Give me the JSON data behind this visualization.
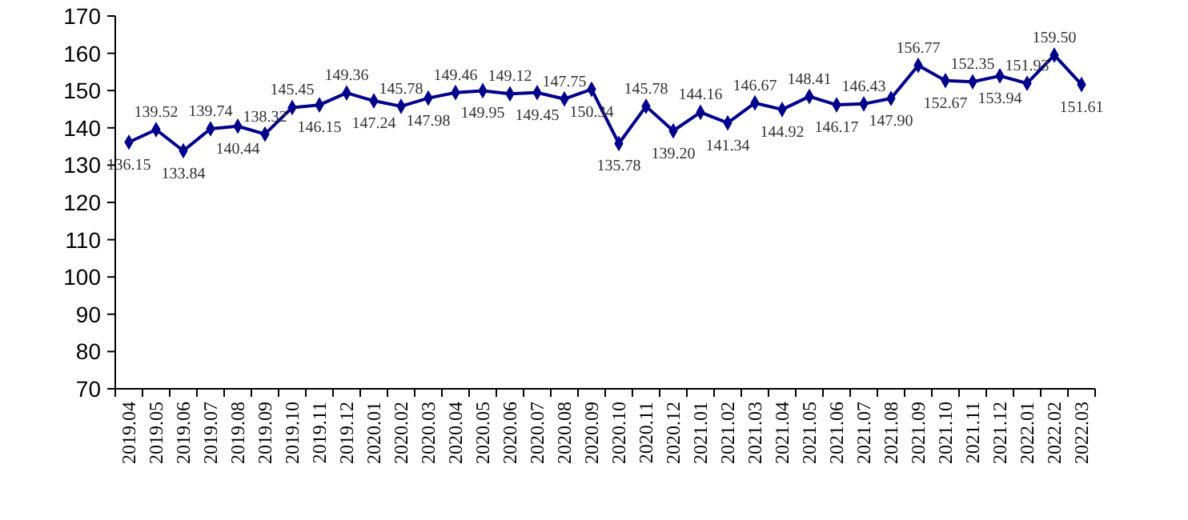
{
  "chart_data": {
    "type": "line",
    "categories": [
      "2019.04",
      "2019.05",
      "2019.06",
      "2019.07",
      "2019.08",
      "2019.09",
      "2019.10",
      "2019.11",
      "2019.12",
      "2020.01",
      "2020.02",
      "2020.03",
      "2020.04",
      "2020.05",
      "2020.06",
      "2020.07",
      "2020.08",
      "2020.09",
      "2020.10",
      "2020.11",
      "2020.12",
      "2021.01",
      "2021.02",
      "2021.03",
      "2021.04",
      "2021.05",
      "2021.06",
      "2021.07",
      "2021.08",
      "2021.09",
      "2021.10",
      "2021.11",
      "2021.12",
      "2022.01",
      "2022.02",
      "2022.03"
    ],
    "series": [
      {
        "color": "#00008b",
        "values": [
          136.15,
          139.52,
          133.84,
          139.74,
          140.44,
          138.32,
          145.45,
          146.15,
          149.36,
          147.24,
          145.78,
          147.98,
          149.46,
          149.95,
          149.12,
          149.45,
          147.75,
          150.34,
          135.78,
          145.78,
          139.2,
          144.16,
          141.34,
          146.67,
          144.92,
          148.41,
          146.17,
          146.43,
          147.9,
          156.77,
          152.67,
          152.35,
          153.94,
          151.93,
          159.5,
          151.61
        ],
        "value_labels": [
          "136.15",
          "139.52",
          "133.84",
          "139.74",
          "140.44",
          "138.32",
          "145.45",
          "146.15",
          "149.36",
          "147.24",
          "145.78",
          "147.98",
          "149.46",
          "149.95",
          "149.12",
          "149.45",
          "147.75",
          "150.34",
          "135.78",
          "145.78",
          "139.20",
          "144.16",
          "141.34",
          "146.67",
          "144.92",
          "148.41",
          "146.17",
          "146.43",
          "147.90",
          "156.77",
          "152.67",
          "152.35",
          "153.94",
          "151.93",
          "159.50",
          "151.61"
        ]
      }
    ],
    "ylim": [
      70,
      170
    ],
    "yticks": [
      70,
      80,
      90,
      100,
      110,
      120,
      130,
      140,
      150,
      160,
      170
    ],
    "marker": "diamond",
    "grid": false
  }
}
